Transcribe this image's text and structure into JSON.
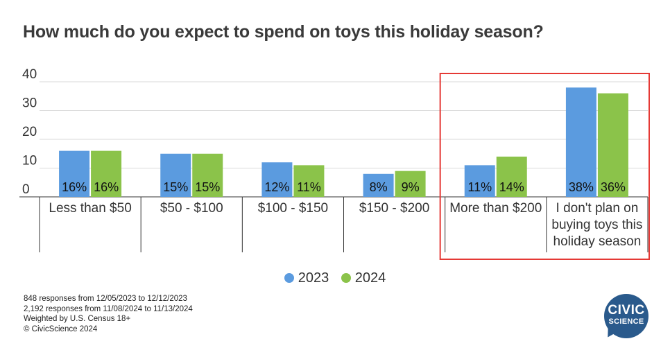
{
  "title": "How much do you expect to spend on toys this holiday season?",
  "chart_data": {
    "type": "bar",
    "categories": [
      [
        "Less than $50"
      ],
      [
        "$50 - $100"
      ],
      [
        "$100 - $150"
      ],
      [
        "$150 - $200"
      ],
      [
        "More than $200"
      ],
      [
        "I don't plan on",
        "buying toys this",
        "holiday season"
      ]
    ],
    "series": [
      {
        "name": "2023",
        "color": "#5b9bdf",
        "values": [
          16,
          15,
          12,
          8,
          11,
          38
        ],
        "labels": [
          "16%",
          "15%",
          "12%",
          "8%",
          "11%",
          "38%"
        ]
      },
      {
        "name": "2024",
        "color": "#8bc34a",
        "values": [
          16,
          15,
          11,
          9,
          14,
          36
        ],
        "labels": [
          "16%",
          "15%",
          "11%",
          "9%",
          "14%",
          "36%"
        ]
      }
    ],
    "y_ticks": [
      "0",
      "10",
      "20",
      "30",
      "40"
    ],
    "ylim": [
      0,
      40
    ],
    "grid": true,
    "legend_position": "bottom",
    "highlight": {
      "categories": [
        "More than $200",
        "I don't plan on buying toys this holiday season"
      ],
      "color": "#e53935"
    }
  },
  "legend": {
    "items": [
      {
        "label": "2023",
        "color": "#5b9bdf"
      },
      {
        "label": "2024",
        "color": "#8bc34a"
      }
    ]
  },
  "footnotes": [
    "848 responses from 12/05/2023 to 12/12/2023",
    "2,192 responses from 11/08/2024 to 11/13/2024",
    "Weighted by U.S. Census 18+",
    "© CivicScience 2024"
  ],
  "logo": {
    "line1": "CIVIC",
    "line2": "SCIENCE",
    "color": "#2a5a8c"
  }
}
